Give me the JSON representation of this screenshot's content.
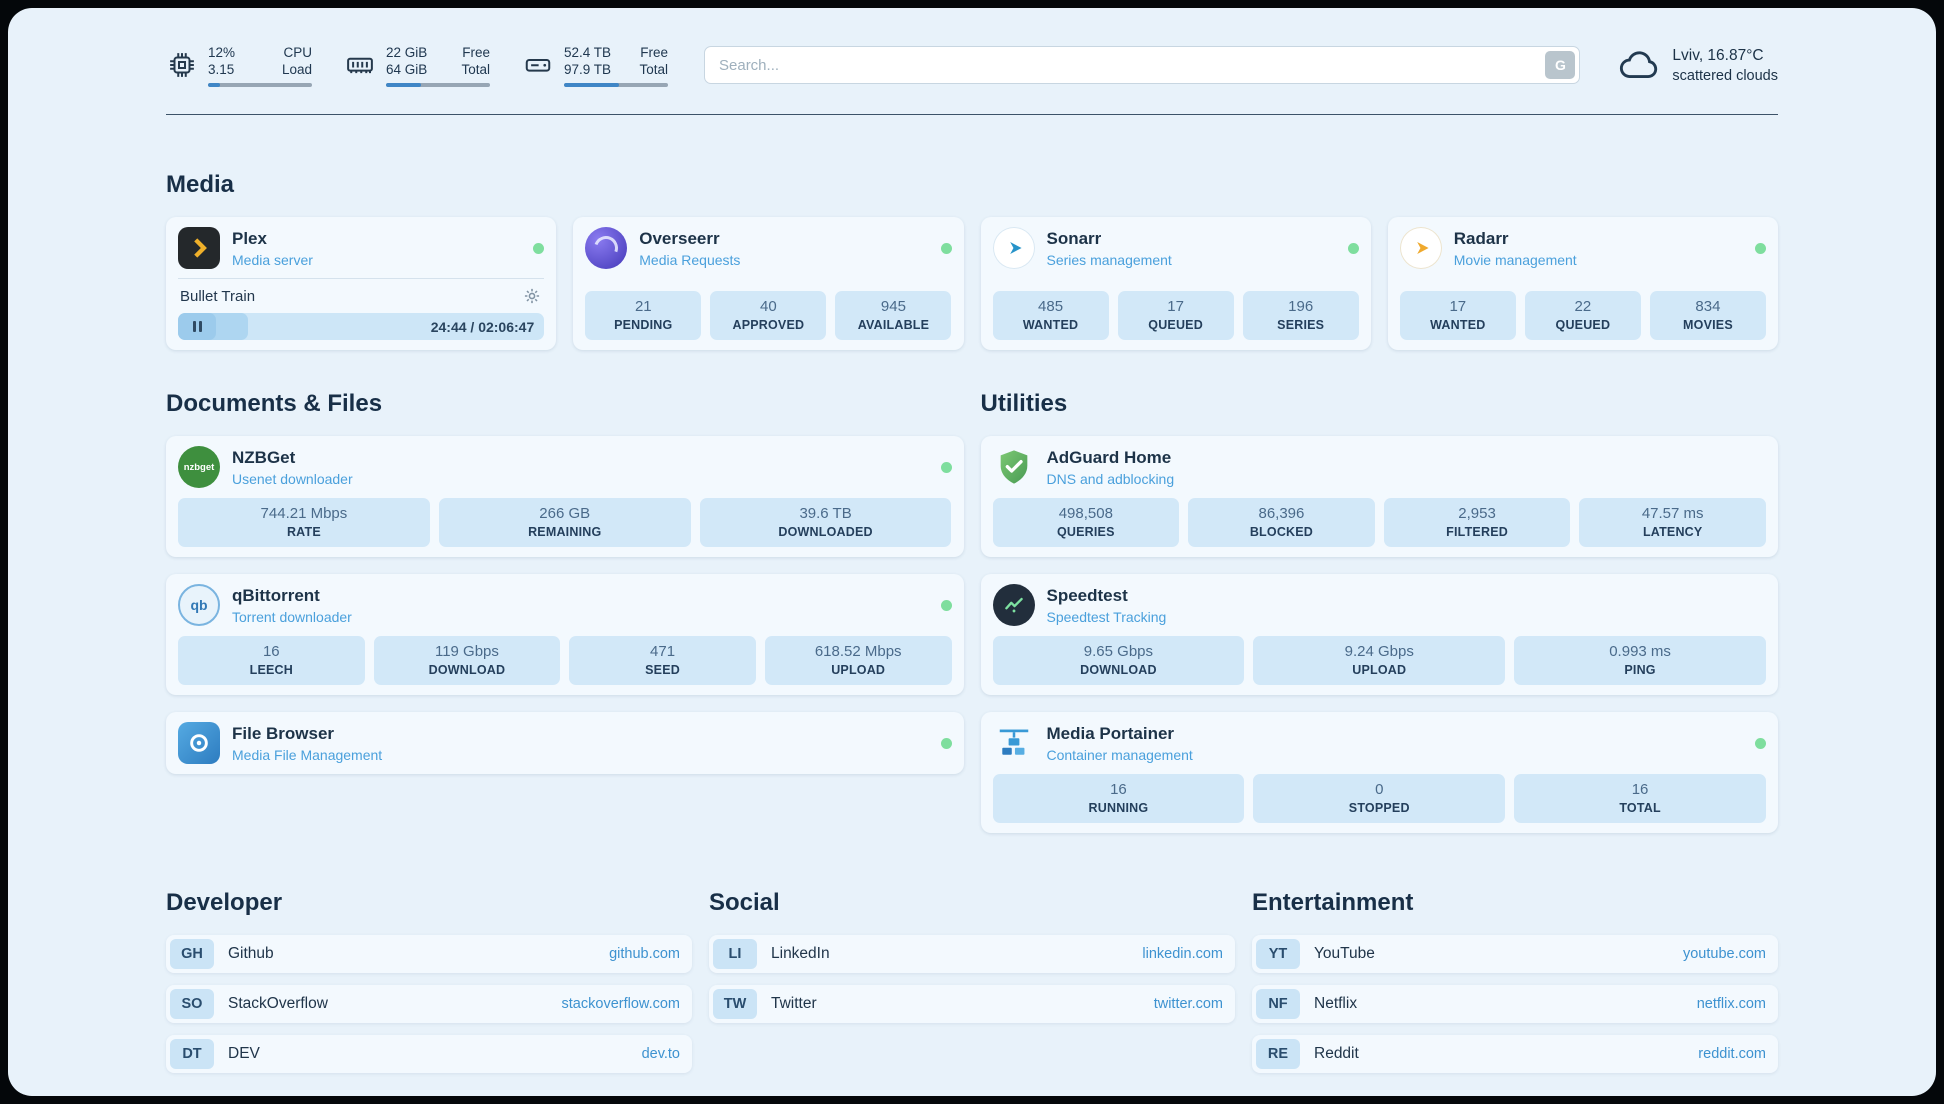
{
  "topbar": {
    "cpu": {
      "value1": "12%",
      "value2": "3.15",
      "label1": "CPU",
      "label2": "Load",
      "bar_percent": 12
    },
    "ram": {
      "value1": "22 GiB",
      "value2": "64 GiB",
      "label1": "Free",
      "label2": "Total",
      "bar_percent": 34
    },
    "disk": {
      "value1": "52.4 TB",
      "value2": "97.9 TB",
      "label1": "Free",
      "label2": "Total",
      "bar_percent": 53
    },
    "search": {
      "placeholder": "Search...",
      "button_label": "G"
    },
    "weather": {
      "location": "Lviv, 16.87°C",
      "condition": "scattered clouds"
    }
  },
  "media": {
    "title": "Media",
    "plex": {
      "title": "Plex",
      "subtitle": "Media server",
      "now_playing": {
        "title": "Bullet Train",
        "time": "24:44 / 02:06:47",
        "progress_percent": 19
      }
    },
    "overseerr": {
      "title": "Overseerr",
      "subtitle": "Media Requests",
      "stats": [
        {
          "value": "21",
          "label": "PENDING"
        },
        {
          "value": "40",
          "label": "APPROVED"
        },
        {
          "value": "945",
          "label": "AVAILABLE"
        }
      ]
    },
    "sonarr": {
      "title": "Sonarr",
      "subtitle": "Series management",
      "stats": [
        {
          "value": "485",
          "label": "WANTED"
        },
        {
          "value": "17",
          "label": "QUEUED"
        },
        {
          "value": "196",
          "label": "SERIES"
        }
      ]
    },
    "radarr": {
      "title": "Radarr",
      "subtitle": "Movie management",
      "stats": [
        {
          "value": "17",
          "label": "WANTED"
        },
        {
          "value": "22",
          "label": "QUEUED"
        },
        {
          "value": "834",
          "label": "MOVIES"
        }
      ]
    }
  },
  "documents": {
    "title": "Documents & Files",
    "nzbget": {
      "title": "NZBGet",
      "subtitle": "Usenet downloader",
      "icon_text": "nzbget",
      "stats": [
        {
          "value": "744.21 Mbps",
          "label": "RATE"
        },
        {
          "value": "266 GB",
          "label": "REMAINING"
        },
        {
          "value": "39.6 TB",
          "label": "DOWNLOADED"
        }
      ]
    },
    "qbittorrent": {
      "title": "qBittorrent",
      "subtitle": "Torrent downloader",
      "icon_text": "qb",
      "stats": [
        {
          "value": "16",
          "label": "LEECH"
        },
        {
          "value": "119 Gbps",
          "label": "DOWNLOAD"
        },
        {
          "value": "471",
          "label": "SEED"
        },
        {
          "value": "618.52 Mbps",
          "label": "UPLOAD"
        }
      ]
    },
    "filebrowser": {
      "title": "File Browser",
      "subtitle": "Media File Management"
    }
  },
  "utilities": {
    "title": "Utilities",
    "adguard": {
      "title": "AdGuard Home",
      "subtitle": "DNS and adblocking",
      "stats": [
        {
          "value": "498,508",
          "label": "QUERIES"
        },
        {
          "value": "86,396",
          "label": "BLOCKED"
        },
        {
          "value": "2,953",
          "label": "FILTERED"
        },
        {
          "value": "47.57 ms",
          "label": "LATENCY"
        }
      ]
    },
    "speedtest": {
      "title": "Speedtest",
      "subtitle": "Speedtest Tracking",
      "stats": [
        {
          "value": "9.65 Gbps",
          "label": "DOWNLOAD"
        },
        {
          "value": "9.24 Gbps",
          "label": "UPLOAD"
        },
        {
          "value": "0.993 ms",
          "label": "PING"
        }
      ]
    },
    "portainer": {
      "title": "Media Portainer",
      "subtitle": "Container management",
      "stats": [
        {
          "value": "16",
          "label": "RUNNING"
        },
        {
          "value": "0",
          "label": "STOPPED"
        },
        {
          "value": "16",
          "label": "TOTAL"
        }
      ]
    }
  },
  "bookmarks": {
    "developer": {
      "title": "Developer",
      "items": [
        {
          "abbr": "GH",
          "name": "Github",
          "url": "github.com"
        },
        {
          "abbr": "SO",
          "name": "StackOverflow",
          "url": "stackoverflow.com"
        },
        {
          "abbr": "DT",
          "name": "DEV",
          "url": "dev.to"
        }
      ]
    },
    "social": {
      "title": "Social",
      "items": [
        {
          "abbr": "LI",
          "name": "LinkedIn",
          "url": "linkedin.com"
        },
        {
          "abbr": "TW",
          "name": "Twitter",
          "url": "twitter.com"
        }
      ]
    },
    "entertainment": {
      "title": "Entertainment",
      "items": [
        {
          "abbr": "YT",
          "name": "YouTube",
          "url": "youtube.com"
        },
        {
          "abbr": "NF",
          "name": "Netflix",
          "url": "netflix.com"
        },
        {
          "abbr": "RE",
          "name": "Reddit",
          "url": "reddit.com"
        }
      ]
    }
  },
  "theme": {
    "status_online": "#7ede9e",
    "accent_blue": "#3d92d0",
    "stat_box_bg": "#d2e8f8",
    "page_bg": "#e8f2fa",
    "card_bg": "#f3f9fe"
  }
}
